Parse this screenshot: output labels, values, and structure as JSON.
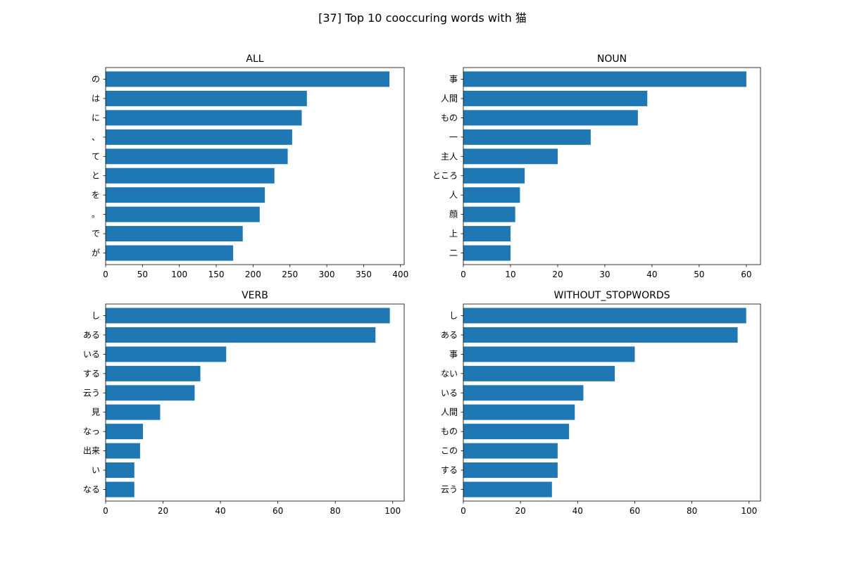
{
  "figure": {
    "title": "[37] Top 10 cooccuring words with 猫",
    "bar_color": "#1f77b4"
  },
  "chart_data": [
    {
      "type": "bar",
      "orientation": "horizontal",
      "title": "ALL",
      "categories": [
        "の",
        "は",
        "に",
        "、",
        "て",
        "と",
        "を",
        "。",
        "で",
        "が"
      ],
      "values": [
        385,
        273,
        266,
        253,
        247,
        229,
        216,
        209,
        186,
        173
      ],
      "xlim": [
        0,
        405
      ],
      "xticks": [
        0,
        50,
        100,
        150,
        200,
        250,
        300,
        350,
        400
      ]
    },
    {
      "type": "bar",
      "orientation": "horizontal",
      "title": "NOUN",
      "categories": [
        "事",
        "人間",
        "もの",
        "一",
        "主人",
        "ところ",
        "人",
        "顔",
        "上",
        "二"
      ],
      "values": [
        60,
        39,
        37,
        27,
        20,
        13,
        12,
        11,
        10,
        10
      ],
      "xlim": [
        0,
        63
      ],
      "xticks": [
        0,
        10,
        20,
        30,
        40,
        50,
        60
      ]
    },
    {
      "type": "bar",
      "orientation": "horizontal",
      "title": "VERB",
      "categories": [
        "し",
        "ある",
        "いる",
        "する",
        "云う",
        "見",
        "なっ",
        "出来",
        "い",
        "なる"
      ],
      "values": [
        99,
        94,
        42,
        33,
        31,
        19,
        13,
        12,
        10,
        10
      ],
      "xlim": [
        0,
        104
      ],
      "xticks": [
        0,
        20,
        40,
        60,
        80,
        100
      ]
    },
    {
      "type": "bar",
      "orientation": "horizontal",
      "title": "WITHOUT_STOPWORDS",
      "categories": [
        "し",
        "ある",
        "事",
        "ない",
        "いる",
        "人間",
        "もの",
        "この",
        "する",
        "云う"
      ],
      "values": [
        99,
        96,
        60,
        53,
        42,
        39,
        37,
        33,
        33,
        31
      ],
      "xlim": [
        0,
        104
      ],
      "xticks": [
        0,
        20,
        40,
        60,
        80,
        100
      ]
    }
  ]
}
